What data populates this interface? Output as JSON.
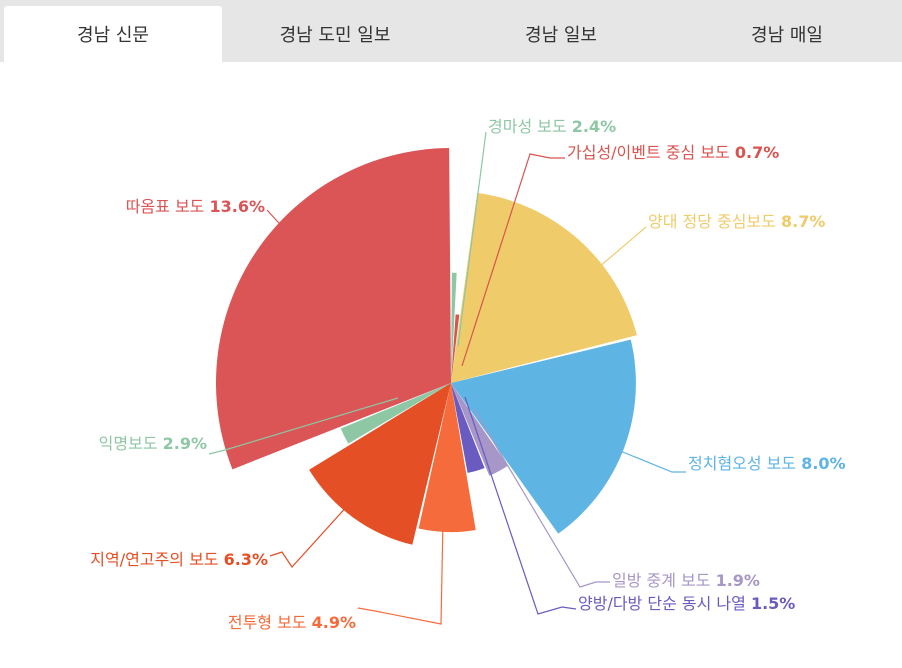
{
  "tabs": [
    {
      "label": "경남 신문",
      "active": true
    },
    {
      "label": "경남 도민 일보",
      "active": false
    },
    {
      "label": "경남 일보",
      "active": false
    },
    {
      "label": "경남 매일",
      "active": false
    }
  ],
  "chart_data": {
    "type": "pie",
    "variant": "variable-radius (nightingale) pie",
    "slices": [
      {
        "name": "경마성 보도",
        "value": 2.4,
        "label": "2.4%",
        "color": "#8ec7a4"
      },
      {
        "name": "가십성/이벤트 중심 보도",
        "value": 0.7,
        "label": "0.7%",
        "color": "#d9534f"
      },
      {
        "name": "양대 정당 중심보도",
        "value": 8.7,
        "label": "8.7%",
        "color": "#efcb6a"
      },
      {
        "name": "정치혐오성 보도",
        "value": 8.0,
        "label": "8.0%",
        "color": "#5eb4e3"
      },
      {
        "name": "일방 중계 보도",
        "value": 1.9,
        "label": "1.9%",
        "color": "#a796c8"
      },
      {
        "name": "양방/다방 단순 동시 나열",
        "value": 1.5,
        "label": "1.5%",
        "color": "#6a5bc0"
      },
      {
        "name": "전투형 보도",
        "value": 4.9,
        "label": "4.9%",
        "color": "#f56b3b"
      },
      {
        "name": "지역/연고주의 보도",
        "value": 6.3,
        "label": "6.3%",
        "color": "#e44f25"
      },
      {
        "name": "익명보도",
        "value": 2.9,
        "label": "2.9%",
        "color": "#8ec7a4"
      },
      {
        "name": "따옴표 보도",
        "value": 13.6,
        "label": "13.6%",
        "color": "#db5456"
      }
    ]
  }
}
